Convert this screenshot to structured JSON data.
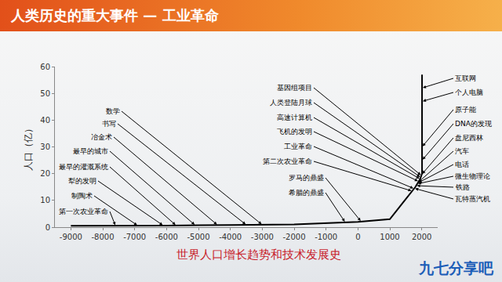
{
  "chart_data": {
    "type": "line",
    "title": "人类历史的重大事件 — 工业革命",
    "caption": "世界人口增长趋势和技术发展史",
    "watermark": "九七分享吧",
    "y_label": "人口（亿）",
    "x": [
      -9000,
      -8000,
      -6000,
      -4000,
      -2000,
      0,
      1000,
      1800,
      1950,
      2010,
      2010
    ],
    "values": [
      0.5,
      0.5,
      0.6,
      0.8,
      1,
      2,
      3,
      15,
      18,
      20,
      57
    ],
    "color": "#000000",
    "xlim": [
      -9500,
      2500
    ],
    "xticks": [
      -9000,
      -8000,
      -7000,
      -6000,
      -5000,
      -4000,
      -3000,
      -2000,
      -1000,
      0,
      1000,
      2000
    ],
    "ylim": [
      0,
      60
    ],
    "yticks": [
      0,
      10,
      20,
      30,
      40,
      50,
      60
    ],
    "grid": false,
    "annotations": [
      {
        "text": "第一次农业革命",
        "x": -7600,
        "y": 0.5
      },
      {
        "text": "制陶术",
        "x": -6900,
        "y": 0.55
      },
      {
        "text": "犁的发明",
        "x": -6100,
        "y": 0.6
      },
      {
        "text": "最早的灌溉系统",
        "x": -5700,
        "y": 0.63
      },
      {
        "text": "最早的城市",
        "x": -5100,
        "y": 0.69
      },
      {
        "text": "冶金术",
        "x": -4400,
        "y": 0.76
      },
      {
        "text": "书写",
        "x": -3500,
        "y": 0.85
      },
      {
        "text": "数学",
        "x": -3000,
        "y": 0.9
      },
      {
        "text": "希腊的鼎盛",
        "x": -400,
        "y": 1.8
      },
      {
        "text": "罗马的鼎盛",
        "x": 100,
        "y": 2.1
      },
      {
        "text": "第二次农业革命",
        "x": 1700,
        "y": 13.5
      },
      {
        "text": "工业革命",
        "x": 1760,
        "y": 14.4
      },
      {
        "text": "飞机的发明",
        "x": 1903,
        "y": 17.1
      },
      {
        "text": "高速计算机",
        "x": 1950,
        "y": 18
      },
      {
        "text": "人类登陆月球",
        "x": 1969,
        "y": 18.6
      },
      {
        "text": "基因组项目",
        "x": 1990,
        "y": 19.3
      },
      {
        "text": "互联网",
        "x": 2010,
        "y": 52
      },
      {
        "text": "个人电脑",
        "x": 2010,
        "y": 47
      },
      {
        "text": "原子能",
        "x": 2010,
        "y": 30
      },
      {
        "text": "DNA的发现",
        "x": 2010,
        "y": 25
      },
      {
        "text": "盘尼西林",
        "x": 2000,
        "y": 19.7
      },
      {
        "text": "汽车",
        "x": 1886,
        "y": 16.7
      },
      {
        "text": "电话",
        "x": 1876,
        "y": 16.5
      },
      {
        "text": "微生物理论",
        "x": 1860,
        "y": 16.2
      },
      {
        "text": "铁路",
        "x": 1825,
        "y": 15.5
      },
      {
        "text": "瓦特蒸汽机",
        "x": 1769,
        "y": 14.5
      }
    ]
  }
}
